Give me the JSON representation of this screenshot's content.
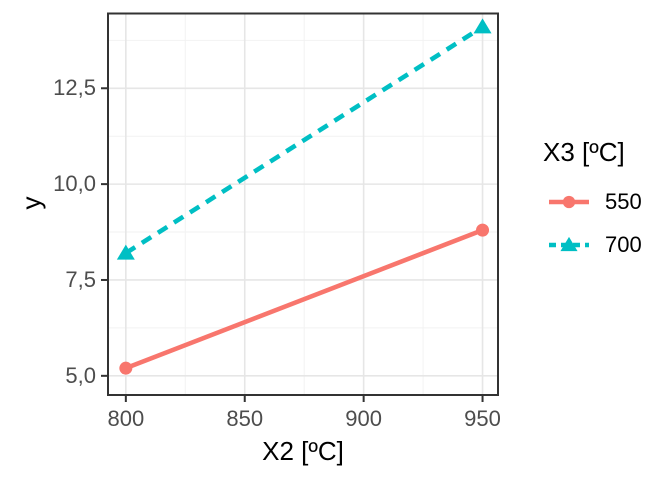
{
  "figure": {
    "background": "#FFFFFF"
  },
  "chart_data": {
    "type": "line",
    "title": "",
    "xlabel": "X2 [ºC]",
    "ylabel": "y",
    "legend_title": "X3 [ºC]",
    "legend_position": "right",
    "grid": true,
    "x": [
      800,
      950
    ],
    "series": [
      {
        "name": "550",
        "values": [
          5.2,
          8.8
        ],
        "color": "#F8766D",
        "linestyle": "solid",
        "marker": "circle"
      },
      {
        "name": "700",
        "values": [
          8.2,
          14.1
        ],
        "color": "#00BFC4",
        "linestyle": "dashed",
        "marker": "triangle"
      }
    ],
    "xlim": [
      792.5,
      956.5
    ],
    "ylim": [
      4.5,
      14.45
    ],
    "x_ticks": [
      800,
      850,
      900,
      950
    ],
    "x_tick_labels": [
      "800",
      "850",
      "900",
      "950"
    ],
    "x_minor_ticks": [
      825,
      875,
      925
    ],
    "y_ticks": [
      5.0,
      7.5,
      10.0,
      12.5
    ],
    "y_tick_labels": [
      "5,0",
      "7,5",
      "10,0",
      "12,5"
    ],
    "y_minor_ticks": [
      6.25,
      8.75,
      11.25,
      13.75
    ],
    "decimal_separator": ",",
    "colors": {
      "series_550": "#F8766D",
      "series_700": "#00BFC4",
      "grid_major": "#E6E6E6",
      "grid_minor": "#F2F2F2",
      "panel_border": "#333333",
      "tick_mark": "#333333",
      "tick_label": "#4D4D4D",
      "axis_title": "#000000",
      "panel_bg": "#FFFFFF"
    }
  }
}
